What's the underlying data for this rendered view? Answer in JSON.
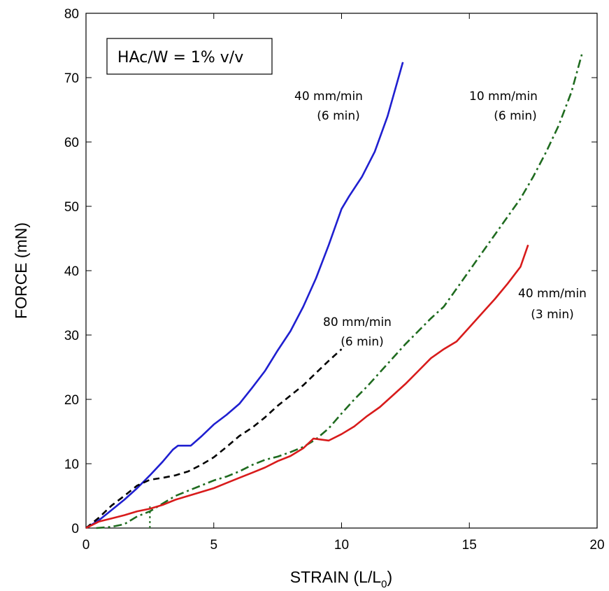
{
  "chart_data": {
    "type": "line",
    "xlabel": "STRAIN (L/L",
    "xlabel_sub": "0",
    "xlabel_close": ")",
    "ylabel": "FORCE (mN)",
    "xlim": [
      0,
      20
    ],
    "ylim": [
      0,
      80
    ],
    "x_ticks": [
      "0",
      "5",
      "10",
      "15",
      "20"
    ],
    "y_ticks": [
      "0",
      "10",
      "20",
      "30",
      "40",
      "50",
      "60",
      "70",
      "80"
    ],
    "grid": false,
    "legend_box": "HAc/W = 1% v/v",
    "series": [
      {
        "color": "#1f1fd0",
        "dash": "solid",
        "points": [
          [
            0,
            0
          ],
          [
            0.5,
            1.2
          ],
          [
            1,
            2.8
          ],
          [
            1.5,
            4.4
          ],
          [
            2,
            6.2
          ],
          [
            2.5,
            8.2
          ],
          [
            3,
            10.3
          ],
          [
            3.4,
            12.2
          ],
          [
            3.6,
            12.8
          ],
          [
            4.1,
            12.8
          ],
          [
            4.5,
            14.2
          ],
          [
            5,
            16.1
          ],
          [
            5.5,
            17.6
          ],
          [
            6,
            19.3
          ],
          [
            6.5,
            21.8
          ],
          [
            7,
            24.4
          ],
          [
            7.5,
            27.6
          ],
          [
            8,
            30.6
          ],
          [
            8.5,
            34.4
          ],
          [
            9,
            38.8
          ],
          [
            9.5,
            44.0
          ],
          [
            10,
            49.6
          ],
          [
            10.3,
            51.6
          ],
          [
            10.8,
            54.6
          ],
          [
            11.3,
            58.5
          ],
          [
            11.8,
            64.0
          ],
          [
            12.4,
            72.4
          ]
        ]
      },
      {
        "color": "#000000",
        "dash": "dashed",
        "points": [
          [
            0,
            0
          ],
          [
            0.5,
            1.6
          ],
          [
            1,
            3.5
          ],
          [
            1.5,
            5.0
          ],
          [
            2,
            6.6
          ],
          [
            2.5,
            7.5
          ],
          [
            3,
            7.8
          ],
          [
            3.5,
            8.2
          ],
          [
            4,
            8.8
          ],
          [
            4.5,
            9.8
          ],
          [
            5,
            11.0
          ],
          [
            5.5,
            12.6
          ],
          [
            6,
            14.3
          ],
          [
            6.5,
            15.6
          ],
          [
            7,
            17.2
          ],
          [
            7.5,
            19.0
          ],
          [
            8,
            20.6
          ],
          [
            8.5,
            22.2
          ],
          [
            9,
            24.1
          ],
          [
            9.5,
            26.0
          ],
          [
            10,
            27.8
          ]
        ]
      },
      {
        "color": "#1f6b1f",
        "dash": "dashdot",
        "points": [
          [
            0.4,
            0
          ],
          [
            1,
            0.2
          ],
          [
            1.5,
            0.6
          ],
          [
            2,
            1.8
          ],
          [
            2.5,
            2.6
          ],
          [
            3,
            3.8
          ],
          [
            3.5,
            5.0
          ],
          [
            4,
            5.8
          ],
          [
            4.5,
            6.6
          ],
          [
            5,
            7.4
          ],
          [
            5.5,
            8.0
          ],
          [
            6,
            8.8
          ],
          [
            6.5,
            9.8
          ],
          [
            7,
            10.6
          ],
          [
            7.5,
            11.1
          ],
          [
            8,
            11.8
          ],
          [
            8.5,
            12.6
          ],
          [
            9,
            13.8
          ],
          [
            9.5,
            15.5
          ],
          [
            10,
            17.8
          ],
          [
            10.5,
            20.0
          ],
          [
            11,
            22.0
          ],
          [
            11.5,
            24.2
          ],
          [
            12,
            26.4
          ],
          [
            12.5,
            28.6
          ],
          [
            13,
            30.6
          ],
          [
            13.5,
            32.6
          ],
          [
            14,
            34.4
          ],
          [
            14.5,
            37.2
          ],
          [
            15,
            40.0
          ],
          [
            15.5,
            42.8
          ],
          [
            16,
            45.6
          ],
          [
            16.5,
            48.4
          ],
          [
            17,
            51.2
          ],
          [
            17.5,
            54.6
          ],
          [
            18,
            58.4
          ],
          [
            18.5,
            62.6
          ],
          [
            19,
            67.8
          ],
          [
            19.4,
            73.6
          ]
        ]
      },
      {
        "color": "#1f6b1f",
        "dash": "dotted",
        "points": [
          [
            2.5,
            0
          ],
          [
            2.5,
            3.6
          ]
        ]
      },
      {
        "color": "#d81b1b",
        "dash": "solid",
        "points": [
          [
            0,
            0
          ],
          [
            0.5,
            1.0
          ],
          [
            1,
            1.5
          ],
          [
            1.5,
            2.0
          ],
          [
            2,
            2.6
          ],
          [
            2.5,
            3.0
          ],
          [
            3,
            3.6
          ],
          [
            3.5,
            4.4
          ],
          [
            4,
            5.0
          ],
          [
            4.5,
            5.6
          ],
          [
            5,
            6.2
          ],
          [
            5.5,
            7.0
          ],
          [
            6,
            7.8
          ],
          [
            6.5,
            8.6
          ],
          [
            7,
            9.4
          ],
          [
            7.5,
            10.4
          ],
          [
            8,
            11.2
          ],
          [
            8.5,
            12.4
          ],
          [
            8.9,
            13.9
          ],
          [
            9.5,
            13.6
          ],
          [
            10,
            14.6
          ],
          [
            10.5,
            15.8
          ],
          [
            11,
            17.4
          ],
          [
            11.5,
            18.8
          ],
          [
            12,
            20.6
          ],
          [
            12.5,
            22.4
          ],
          [
            13,
            24.4
          ],
          [
            13.5,
            26.4
          ],
          [
            14,
            27.8
          ],
          [
            14.5,
            29.0
          ],
          [
            15,
            31.2
          ],
          [
            15.5,
            33.4
          ],
          [
            16,
            35.6
          ],
          [
            16.5,
            38.0
          ],
          [
            17,
            40.6
          ],
          [
            17.3,
            44.0
          ]
        ]
      }
    ],
    "annotations": [
      {
        "lines": [
          "40 mm/min",
          "(6 min)"
        ]
      },
      {
        "lines": [
          "10 mm/min",
          "(6 min)"
        ]
      },
      {
        "lines": [
          "80 mm/min",
          "(6 min)"
        ]
      },
      {
        "lines": [
          "40 mm/min",
          "(3 min)"
        ]
      }
    ]
  }
}
